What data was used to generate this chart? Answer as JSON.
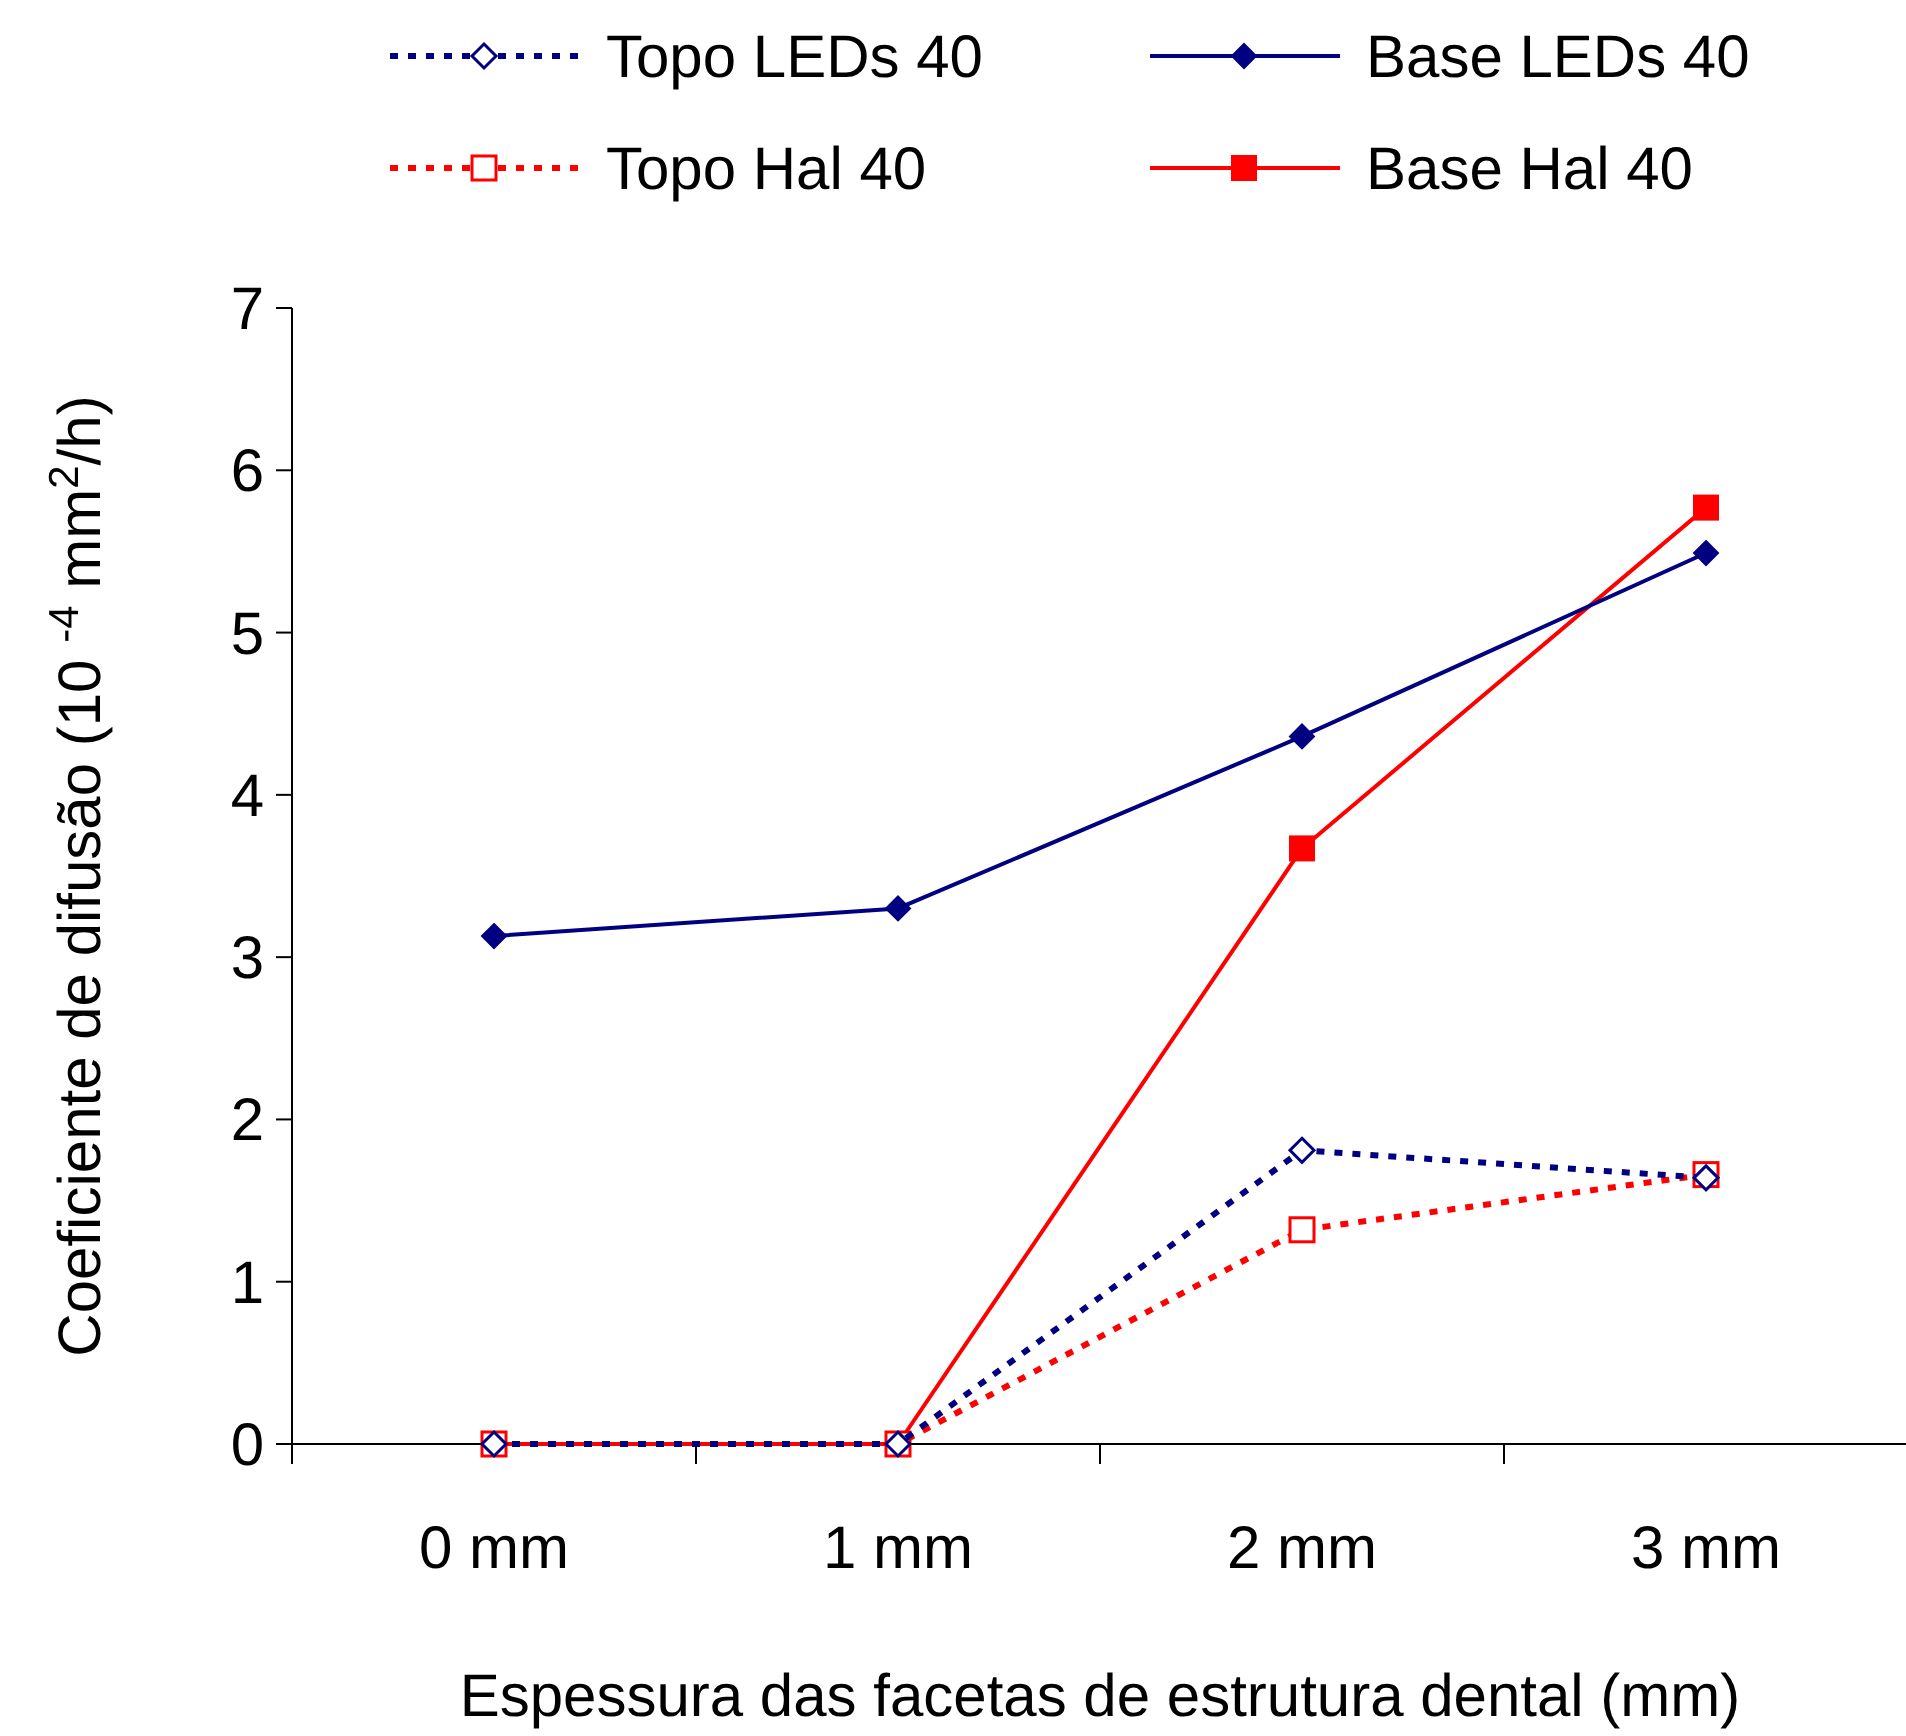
{
  "chart_data": {
    "type": "line",
    "xlabel": "Espessura das facetas de estrutura dental (mm)",
    "ylabel": "Coeficiente de difusão (10 $^{-4}$ mm$^{2}$/h)",
    "categories": [
      "0 mm",
      "1 mm",
      "2 mm",
      "3 mm"
    ],
    "ylim": [
      0,
      7
    ],
    "yticks": [
      0,
      1,
      2,
      3,
      4,
      5,
      6,
      7
    ],
    "grid": false,
    "legend": "top",
    "series": [
      {
        "name": "Topo LEDs 40",
        "color": "#000080",
        "values": [
          0,
          0,
          1.81,
          1.64
        ],
        "marker": "diamond",
        "line_style": "dotted"
      },
      {
        "name": "Base LEDs 40",
        "color": "#000080",
        "values": [
          3.13,
          3.3,
          4.36,
          5.49
        ],
        "marker": "diamond",
        "line_style": "solid"
      },
      {
        "name": "Topo Hal 40",
        "color": "#ff0000",
        "values": [
          0,
          0,
          1.32,
          1.66
        ],
        "marker": "square",
        "line_style": "dotted"
      },
      {
        "name": "Base Hal 40",
        "color": "#ff0000",
        "values": [
          0,
          0,
          3.67,
          5.77
        ],
        "marker": "square",
        "line_style": "solid"
      }
    ]
  }
}
